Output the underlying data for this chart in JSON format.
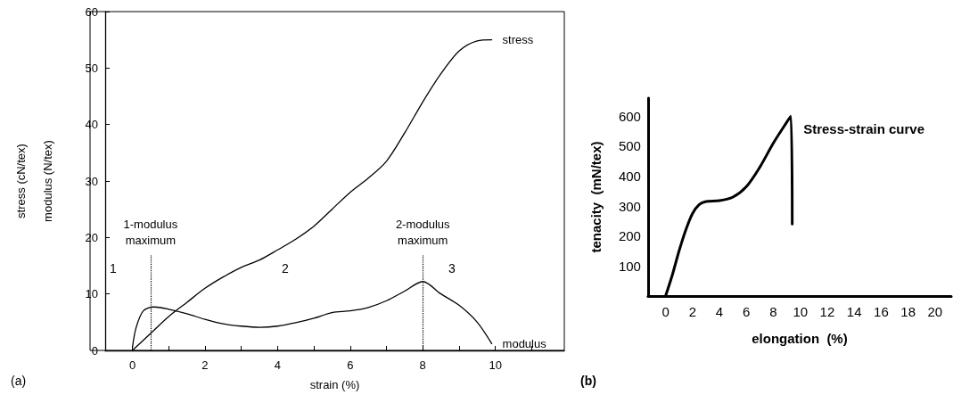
{
  "chart_data": [
    {
      "type": "line",
      "xlabel": "strain (%)",
      "ylabel": "stress (cN/tex)\nmodulus (N/tex)",
      "xlim": [
        -0.75,
        11.9
      ],
      "ylim": [
        0,
        60
      ],
      "xticks": [
        {
          "value": -0.75,
          "label": null
        },
        0,
        {
          "value": 1,
          "label": null
        },
        2,
        {
          "value": 3,
          "label": null
        },
        4,
        {
          "value": 5,
          "label": null
        },
        6,
        {
          "value": 7,
          "label": null
        },
        8,
        {
          "value": 9,
          "label": null
        },
        10,
        {
          "value": 11,
          "label": null
        }
      ],
      "yticks": [
        0,
        10,
        20,
        30,
        40,
        50,
        60
      ],
      "grid": false,
      "legend": false,
      "marker": "none",
      "line_style": "solid",
      "series": [
        {
          "name": "stress",
          "color": "#000000",
          "x": [
            0,
            0.5,
            1,
            1.5,
            2,
            2.5,
            3,
            3.5,
            4,
            4.5,
            5,
            5.5,
            6,
            6.5,
            7,
            7.5,
            8,
            8.5,
            9,
            9.5,
            9.9
          ],
          "values": [
            0,
            3,
            6,
            8.5,
            11,
            13,
            14.7,
            16,
            17.8,
            19.7,
            22,
            25,
            28,
            30.5,
            33.5,
            38.5,
            44,
            49,
            53,
            54.8,
            55
          ]
        },
        {
          "name": "modulus",
          "color": "#000000",
          "x": [
            0,
            0.1,
            0.3,
            0.6,
            1,
            1.5,
            2,
            2.5,
            3,
            3.5,
            4,
            4.5,
            5,
            5.5,
            6,
            6.5,
            7,
            7.5,
            8,
            8.5,
            9,
            9.5,
            9.9
          ],
          "values": [
            0.5,
            4,
            7,
            7.7,
            7.3,
            6.5,
            5.5,
            4.7,
            4.3,
            4.1,
            4.3,
            4.9,
            5.7,
            6.7,
            7,
            7.6,
            8.8,
            10.5,
            12.2,
            10,
            8,
            5,
            1.2
          ]
        }
      ],
      "ref_lines": [
        {
          "axis": "x",
          "value": 0.5,
          "label": "1-modulus\nmaximum",
          "line_style": "dotted",
          "color": "#000000"
        },
        {
          "axis": "x",
          "value": 8,
          "label": "2-modulus\nmaximum",
          "line_style": "dotted",
          "color": "#000000"
        }
      ],
      "annotations": [
        "1",
        "2",
        "3",
        "(a)"
      ]
    },
    {
      "type": "line",
      "xlabel": "elongation  (%)",
      "ylabel": "tenacity  (mN/tex)",
      "xlim": [
        -1.3,
        21.2
      ],
      "ylim": [
        0,
        660
      ],
      "xticks": [
        0,
        2,
        4,
        6,
        8,
        10,
        12,
        14,
        16,
        18,
        20
      ],
      "yticks": [
        100,
        200,
        300,
        400,
        500,
        600
      ],
      "grid": false,
      "legend": false,
      "marker": "none",
      "line_style": "solid",
      "series": [
        {
          "name": "Stress-strain curve",
          "color": "#000000",
          "x": [
            0,
            0.5,
            1,
            1.5,
            2,
            2.5,
            3,
            4,
            5,
            6,
            7,
            8,
            9,
            9.3,
            9.4
          ],
          "values": [
            0,
            70,
            150,
            220,
            275,
            305,
            315,
            318,
            330,
            365,
            430,
            510,
            580,
            600,
            240
          ]
        }
      ],
      "annotations": [
        "(b)"
      ]
    }
  ]
}
